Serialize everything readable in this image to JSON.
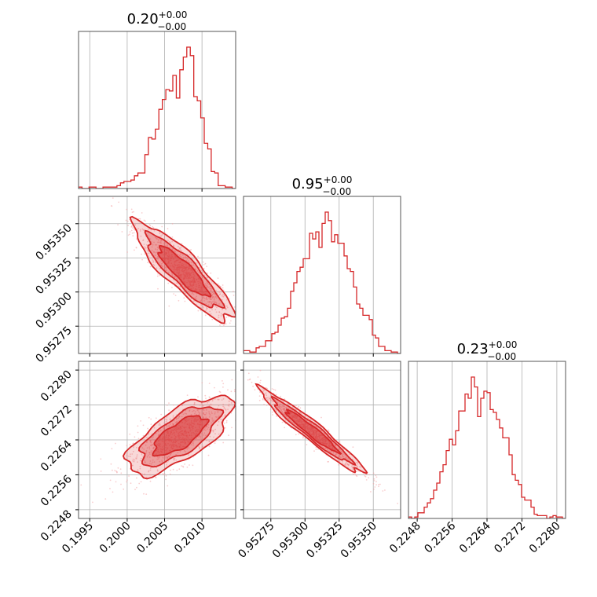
{
  "chart_data": {
    "type": "corner",
    "color": "#d62728",
    "grid": true,
    "parameters": [
      {
        "range": [
          0.19935,
          0.20145
        ],
        "ticks": [
          "0.1995",
          "0.2000",
          "0.2005",
          "0.2010"
        ],
        "tick_values": [
          0.1995,
          0.2,
          0.2005,
          0.201
        ]
      },
      {
        "range": [
          0.95255,
          0.9537
        ],
        "ticks": [
          "0.95275",
          "0.95300",
          "0.95325",
          "0.95350"
        ],
        "tick_values": [
          0.95275,
          0.953,
          0.95325,
          0.9535
        ]
      },
      {
        "range": [
          0.2246,
          0.2282
        ],
        "ticks": [
          "0.2248",
          "0.2256",
          "0.2264",
          "0.2272",
          "0.2280"
        ],
        "tick_values": [
          0.2248,
          0.2256,
          0.2264,
          0.2272,
          0.228
        ]
      }
    ],
    "titles": [
      {
        "value": "0.20",
        "plus": "+0.00",
        "minus": "−0.00"
      },
      {
        "value": "0.95",
        "plus": "+0.00",
        "minus": "−0.00"
      },
      {
        "value": "0.23",
        "plus": "+0.00",
        "minus": "−0.00"
      }
    ],
    "histograms": [
      [
        0.01,
        0.0,
        0.0,
        0.01,
        0.01,
        0.0,
        0.0,
        0.01,
        0.01,
        0.01,
        0.01,
        0.02,
        0.04,
        0.05,
        0.05,
        0.06,
        0.09,
        0.11,
        0.11,
        0.24,
        0.36,
        0.35,
        0.42,
        0.56,
        0.63,
        0.7,
        0.69,
        0.8,
        0.64,
        0.84,
        0.93,
        1.0,
        0.94,
        0.65,
        0.62,
        0.5,
        0.32,
        0.28,
        0.12,
        0.11,
        0.02,
        0.02,
        0.01,
        0.01,
        0.0
      ],
      [
        0.02,
        0.02,
        0.01,
        0.01,
        0.04,
        0.05,
        0.05,
        0.09,
        0.09,
        0.14,
        0.15,
        0.2,
        0.25,
        0.26,
        0.32,
        0.44,
        0.5,
        0.58,
        0.61,
        0.67,
        0.67,
        0.85,
        0.81,
        0.86,
        0.75,
        0.92,
        1.0,
        0.94,
        0.79,
        0.84,
        0.78,
        0.78,
        0.69,
        0.6,
        0.58,
        0.47,
        0.35,
        0.32,
        0.27,
        0.27,
        0.24,
        0.13,
        0.11,
        0.05,
        0.05,
        0.02,
        0.02,
        0.01,
        0.01,
        0.0
      ],
      [
        0.01,
        0.0,
        0.01,
        0.04,
        0.04,
        0.08,
        0.11,
        0.14,
        0.2,
        0.25,
        0.33,
        0.38,
        0.48,
        0.56,
        0.52,
        0.62,
        0.76,
        0.76,
        0.88,
        0.85,
        1.0,
        0.93,
        0.72,
        0.85,
        0.9,
        0.89,
        0.77,
        0.75,
        0.7,
        0.64,
        0.57,
        0.57,
        0.45,
        0.31,
        0.27,
        0.24,
        0.15,
        0.13,
        0.13,
        0.08,
        0.03,
        0.02,
        0.02,
        0.02,
        0.0,
        0.01,
        0.02,
        0.01,
        0.01,
        0.0
      ]
    ],
    "pairs": [
      {
        "x_param": 0,
        "y_param": 1,
        "mean": [
          0.20075,
          0.95315
        ],
        "sd": [
          0.00033,
          0.00018
        ],
        "corr": -0.88
      },
      {
        "x_param": 0,
        "y_param": 2,
        "mean": [
          0.2007,
          0.2265
        ],
        "sd": [
          0.00035,
          0.00045
        ],
        "corr": 0.7
      },
      {
        "x_param": 1,
        "y_param": 2,
        "mean": [
          0.95305,
          0.2266
        ],
        "sd": [
          0.00019,
          0.00048
        ],
        "corr": -0.96
      }
    ]
  }
}
